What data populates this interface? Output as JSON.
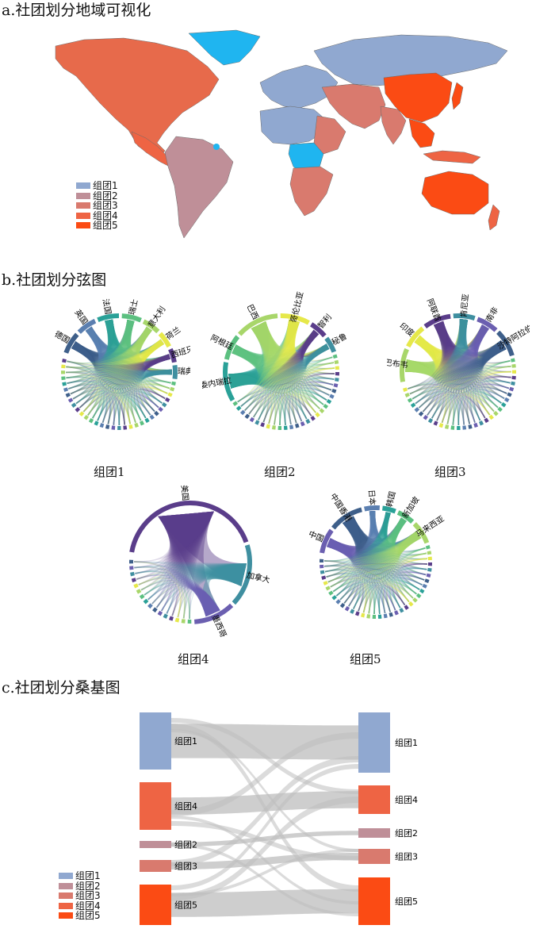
{
  "colors": {
    "group1": "#90a8d0",
    "group2": "#bf8f98",
    "group3": "#d97a6e",
    "group4": "#ee6444",
    "group5": "#fb4b14",
    "special": "#1fb5f0",
    "flow": "#bdbdbd"
  },
  "sections": {
    "a_title": "a.社团划分地域可视化",
    "b_title": "b.社团划分弦图",
    "c_title": "c.社团划分桑基图"
  },
  "legend": [
    "组团1",
    "组团2",
    "组团3",
    "组团4",
    "组团5"
  ],
  "chords": [
    {
      "caption": "组团1",
      "labels": [
        "德国",
        "英国",
        "法国",
        "瑞士",
        "意大利",
        "荷兰",
        "西班牙",
        "瑞典"
      ]
    },
    {
      "caption": "组团2",
      "labels": [
        "委内瑞拉",
        "阿根廷",
        "巴西",
        "哥伦比亚",
        "智利",
        "秘鲁"
      ]
    },
    {
      "caption": "组团3",
      "labels": [
        "津巴布韦",
        "印度",
        "阿联酋",
        "肯尼亚",
        "南非",
        "沙特阿拉伯"
      ]
    },
    {
      "caption": "组团4",
      "labels": [
        "美国",
        "加拿大",
        "墨西哥"
      ]
    },
    {
      "caption": "组团5",
      "labels": [
        "中国",
        "中国香港",
        "日本",
        "韩国",
        "新加坡",
        "马来西亚"
      ]
    }
  ],
  "sankey": {
    "left": [
      {
        "label": "组团1",
        "group": "group1"
      },
      {
        "label": "组团4",
        "group": "group4"
      },
      {
        "label": "组团2",
        "group": "group2"
      },
      {
        "label": "组团3",
        "group": "group3"
      },
      {
        "label": "组团5",
        "group": "group5"
      }
    ],
    "right": [
      {
        "label": "组团1",
        "group": "group1"
      },
      {
        "label": "组团4",
        "group": "group4"
      },
      {
        "label": "组团2",
        "group": "group2"
      },
      {
        "label": "组团3",
        "group": "group3"
      },
      {
        "label": "组团5",
        "group": "group5"
      }
    ]
  }
}
